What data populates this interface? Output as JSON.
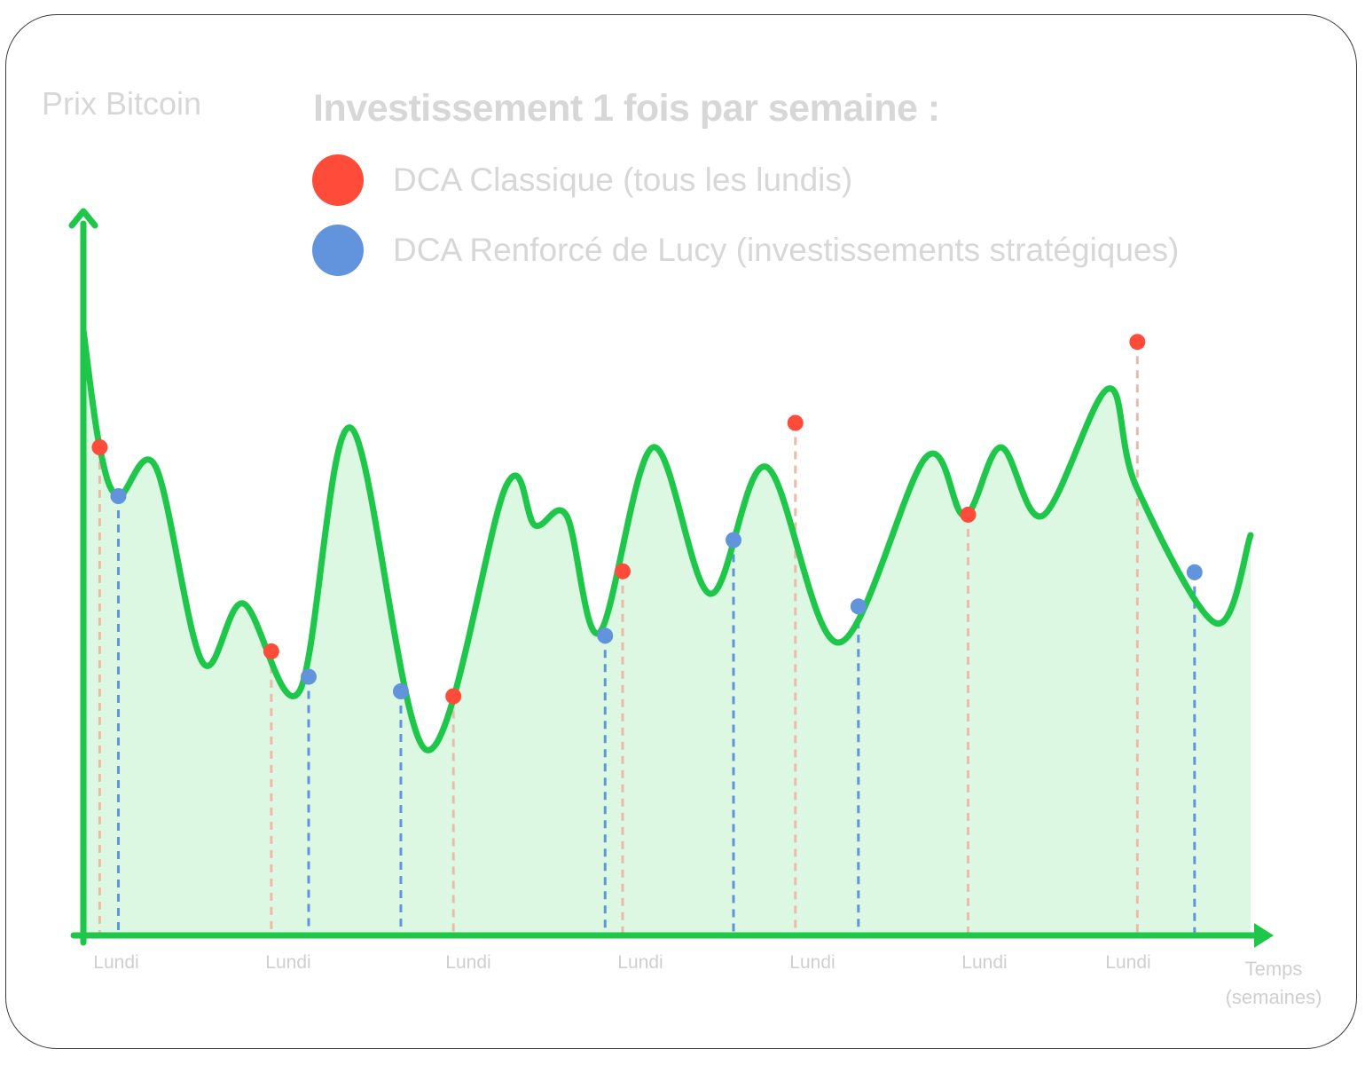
{
  "chart_data": {
    "type": "line",
    "title": "Investissement 1 fois par semaine :",
    "ylabel": "Prix Bitcoin",
    "xlabel": [
      "Temps",
      "(semaines)"
    ],
    "x_tick_labels": [
      "Lundi",
      "Lundi",
      "Lundi",
      "Lundi",
      "Lundi",
      "Lundi",
      "Lundi"
    ],
    "x_range": [
      0,
      1
    ],
    "y_range": [
      0,
      1
    ],
    "grid": false,
    "legend_position": "top",
    "area_fill": true,
    "price_curve": [
      [
        0.0,
        0.62
      ],
      [
        0.014,
        0.5
      ],
      [
        0.03,
        0.45
      ],
      [
        0.062,
        0.48
      ],
      [
        0.102,
        0.28
      ],
      [
        0.137,
        0.34
      ],
      [
        0.185,
        0.25
      ],
      [
        0.229,
        0.52
      ],
      [
        0.294,
        0.19
      ],
      [
        0.362,
        0.46
      ],
      [
        0.387,
        0.42
      ],
      [
        0.414,
        0.43
      ],
      [
        0.442,
        0.31
      ],
      [
        0.488,
        0.5
      ],
      [
        0.537,
        0.35
      ],
      [
        0.585,
        0.48
      ],
      [
        0.647,
        0.3
      ],
      [
        0.722,
        0.49
      ],
      [
        0.755,
        0.43
      ],
      [
        0.786,
        0.5
      ],
      [
        0.822,
        0.43
      ],
      [
        0.878,
        0.56
      ],
      [
        0.902,
        0.46
      ],
      [
        0.97,
        0.32
      ],
      [
        1.0,
        0.41
      ]
    ],
    "series": [
      {
        "name": "DCA Classique (tous les lundis)",
        "color": "#ff4b3a",
        "points": [
          [
            0.014,
            0.5
          ],
          [
            0.161,
            0.291
          ],
          [
            0.317,
            0.245
          ],
          [
            0.462,
            0.373
          ],
          [
            0.61,
            0.525
          ],
          [
            0.758,
            0.431
          ],
          [
            0.903,
            0.608
          ]
        ]
      },
      {
        "name": "DCA Renforcé de Lucy (investissements stratégiques)",
        "color": "#6294dd",
        "points": [
          [
            0.03,
            0.45
          ],
          [
            0.193,
            0.265
          ],
          [
            0.272,
            0.25
          ],
          [
            0.447,
            0.307
          ],
          [
            0.557,
            0.405
          ],
          [
            0.664,
            0.337
          ],
          [
            0.952,
            0.372
          ]
        ]
      }
    ]
  },
  "colors": {
    "line": "#1ec74a",
    "fill": "#dcf8e2",
    "axis": "#1ec74a",
    "classic": "#ff4b3a",
    "lucy": "#6294dd",
    "text": "#d7d7d7"
  }
}
